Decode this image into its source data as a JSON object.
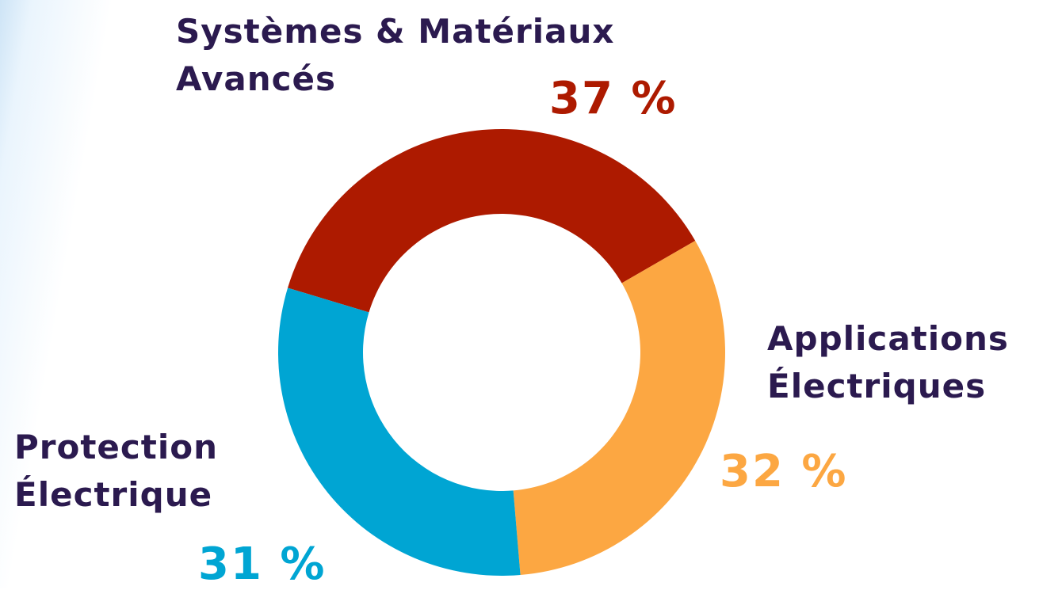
{
  "chart_data": {
    "type": "donut",
    "categories": [
      "Systèmes & Matériaux Avancés",
      "Applications Électriques",
      "Protection Électrique"
    ],
    "values": [
      37,
      32,
      31
    ],
    "value_labels": [
      "37 %",
      "32 %",
      "31 %"
    ],
    "colors": [
      "#ad1a00",
      "#fca742",
      "#00a5d3"
    ]
  }
}
